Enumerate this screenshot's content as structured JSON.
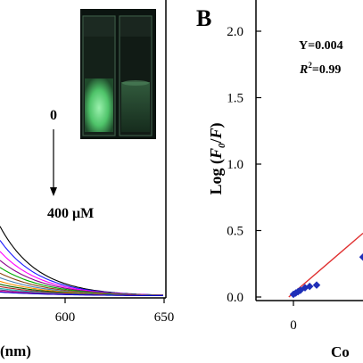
{
  "panel_a": {
    "x_label_fragment": "(nm)",
    "x_ticks": [
      "600",
      "650"
    ],
    "annotation_top": "0",
    "annotation_bottom": "400 μM"
  },
  "panel_b": {
    "letter": "B",
    "eq_text": "Y=0.004",
    "r2_prefix": "R",
    "r2_sup": "2",
    "r2_rest": "=0.99",
    "y_label_main": "Log (",
    "y_label_f0": "F",
    "y_label_sub": "0",
    "y_label_slash": "/",
    "y_label_f": "F",
    "y_label_close": ")",
    "x_label_fragment": "Co",
    "y_ticks": [
      "2.0",
      "1.5",
      "1.0",
      "0.5",
      "0.0"
    ],
    "x_ticks": [
      "0"
    ]
  },
  "colors": {
    "axis": "#000000",
    "fit_line": "#e03030",
    "points": "#1f2fb8",
    "cuvette_glow": "#55d672"
  },
  "chart_data": [
    {
      "type": "line",
      "title": "",
      "xlabel": "(nm)",
      "ylabel": "",
      "x_ticks": [
        600,
        650
      ],
      "note": "Fluorescence emission spectra decreasing from 0 to 400 μM",
      "series_count": 14
    },
    {
      "type": "scatter",
      "title": "",
      "xlabel": "Co",
      "ylabel": "Log (F0/F)",
      "ylim": [
        -0.1,
        2.2
      ],
      "y_ticks": [
        0.0,
        0.5,
        1.0,
        1.5,
        2.0
      ],
      "points": [
        {
          "x": 0.0,
          "y": 0.02
        },
        {
          "x": 0.1,
          "y": 0.03
        },
        {
          "x": 0.2,
          "y": 0.04
        },
        {
          "x": 0.3,
          "y": 0.05
        },
        {
          "x": 0.5,
          "y": 0.07
        },
        {
          "x": 0.7,
          "y": 0.08
        },
        {
          "x": 1.0,
          "y": 0.09
        },
        {
          "x": 3.0,
          "y": 0.3
        }
      ],
      "fit": {
        "label": "Y=0.004",
        "r2": "R2=0.99"
      }
    }
  ]
}
